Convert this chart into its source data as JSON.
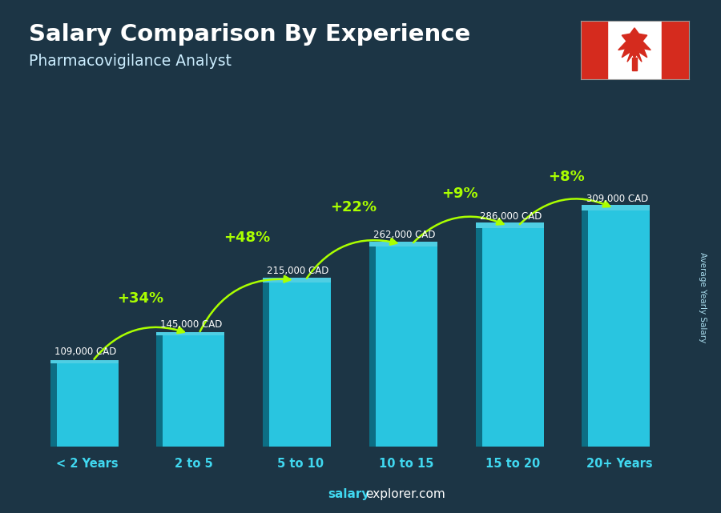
{
  "title": "Salary Comparison By Experience",
  "subtitle": "Pharmacovigilance Analyst",
  "categories": [
    "< 2 Years",
    "2 to 5",
    "5 to 10",
    "10 to 15",
    "15 to 20",
    "20+ Years"
  ],
  "values": [
    109000,
    145000,
    215000,
    262000,
    286000,
    309000
  ],
  "labels": [
    "109,000 CAD",
    "145,000 CAD",
    "215,000 CAD",
    "262,000 CAD",
    "286,000 CAD",
    "309,000 CAD"
  ],
  "pct_labels": [
    "+34%",
    "+48%",
    "+22%",
    "+9%",
    "+8%"
  ],
  "bar_color": "#29c5e0",
  "bar_edge_color": "#1590a8",
  "bar_shadow_color": "#0d6e84",
  "bg_color": "#1c3545",
  "title_color": "#ffffff",
  "subtitle_color": "#cceeff",
  "label_color": "#ffffff",
  "pct_color": "#aaff00",
  "tick_color": "#40d8f0",
  "watermark_bold_color": "#40d8f0",
  "watermark_normal_color": "#ffffff",
  "ylabel": "Average Yearly Salary",
  "ylim": [
    0,
    390000
  ],
  "bar_width": 0.58
}
